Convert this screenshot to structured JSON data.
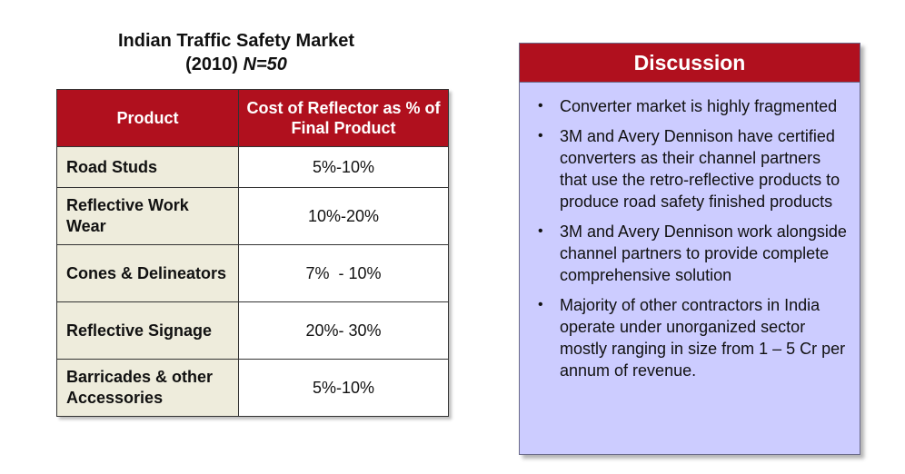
{
  "title": {
    "line1": "Indian Traffic Safety Market",
    "line2_prefix": "(2010) ",
    "line2_n": "N=50"
  },
  "table": {
    "headers": [
      "Product",
      "Cost of Reflector as % of Final Product"
    ],
    "rows": [
      {
        "product": "Road Studs",
        "cost": "5%-10%"
      },
      {
        "product": "Reflective Work Wear",
        "cost": "10%-20%"
      },
      {
        "product": "Cones & Delineators",
        "cost": "7%  - 10%"
      },
      {
        "product": "Reflective Signage",
        "cost": "20%- 30%"
      },
      {
        "product": "Barricades & other Accessories",
        "cost": "5%-10%"
      }
    ]
  },
  "discussion": {
    "title": "Discussion",
    "bullet_symbol": "•",
    "items": [
      "Converter market is highly fragmented",
      "3M and Avery Dennison have certified converters as their channel partners that use the retro-reflective products to produce road safety finished products",
      "3M and Avery Dennison work alongside channel partners to provide complete comprehensive solution",
      "Majority of other contractors in India operate under unorganized sector mostly ranging in size from 1 – 5 Cr per annum of revenue."
    ]
  },
  "colors": {
    "header_red": "#b0101e",
    "product_cell_bg": "#eeecdc",
    "discussion_bg": "#ccccff"
  }
}
